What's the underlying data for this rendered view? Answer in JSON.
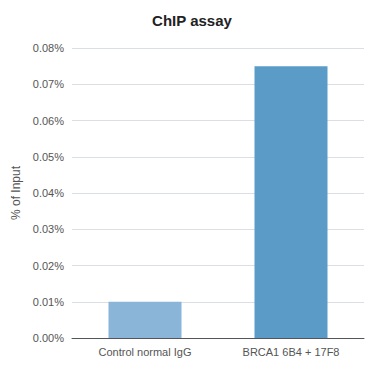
{
  "chart_data": {
    "type": "bar",
    "title": "ChIP assay",
    "categories": [
      "Control normal IgG",
      "BRCA1 6B4 + 17F8"
    ],
    "values": [
      0.0001,
      0.00075
    ],
    "colors": [
      "#8ab4d8",
      "#5b9bc8"
    ],
    "ylabel": "% of Input",
    "ylim": [
      0,
      0.0008
    ],
    "yticks": [
      {
        "value": 0.0,
        "label": "0.00%"
      },
      {
        "value": 0.0001,
        "label": "0.01%"
      },
      {
        "value": 0.0002,
        "label": "0.02%"
      },
      {
        "value": 0.0003,
        "label": "0.03%"
      },
      {
        "value": 0.0004,
        "label": "0.04%"
      },
      {
        "value": 0.0005,
        "label": "0.05%"
      },
      {
        "value": 0.0006,
        "label": "0.06%"
      },
      {
        "value": 0.0007,
        "label": "0.07%"
      },
      {
        "value": 0.0008,
        "label": "0.08%"
      }
    ],
    "grid": true
  }
}
